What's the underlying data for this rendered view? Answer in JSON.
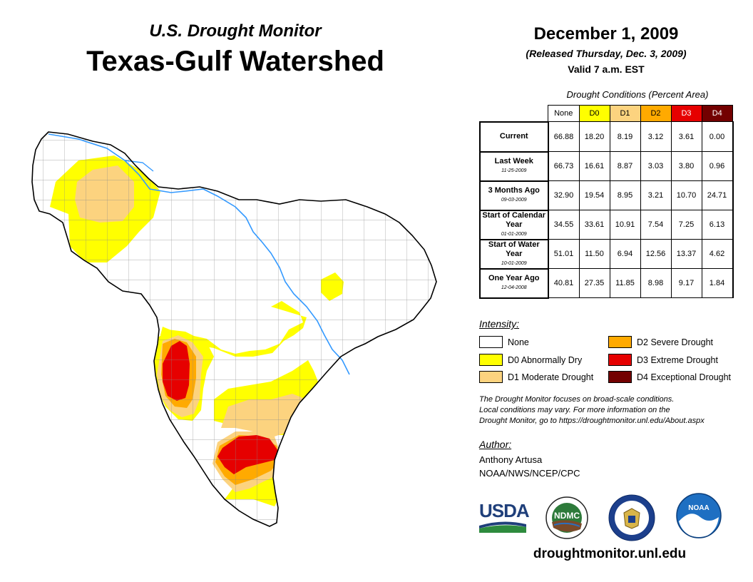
{
  "header": {
    "super_title": "U.S. Drought Monitor",
    "title": "Texas-Gulf Watershed",
    "date": "December 1, 2009",
    "released": "(Released Thursday, Dec. 3, 2009)",
    "valid": "Valid 7 a.m. EST"
  },
  "table": {
    "caption": "Drought Conditions (Percent Area)",
    "columns": [
      "None",
      "D0",
      "D1",
      "D2",
      "D3",
      "D4"
    ],
    "column_colors": [
      "#ffffff",
      "#ffff00",
      "#fcd37f",
      "#ffaa00",
      "#e60000",
      "#730000"
    ],
    "rows": [
      {
        "label": "Current",
        "date": "",
        "values": [
          "66.88",
          "18.20",
          "8.19",
          "3.12",
          "3.61",
          "0.00"
        ]
      },
      {
        "label": "Last Week",
        "date": "11-25-2009",
        "values": [
          "66.73",
          "16.61",
          "8.87",
          "3.03",
          "3.80",
          "0.96"
        ]
      },
      {
        "label": "3 Months Ago",
        "date": "09-03-2009",
        "values": [
          "32.90",
          "19.54",
          "8.95",
          "3.21",
          "10.70",
          "24.71"
        ]
      },
      {
        "label": "Start of Calendar Year",
        "date": "01-01-2009",
        "values": [
          "34.55",
          "33.61",
          "10.91",
          "7.54",
          "7.25",
          "6.13"
        ]
      },
      {
        "label": "Start of Water Year",
        "date": "10-01-2009",
        "values": [
          "51.01",
          "11.50",
          "6.94",
          "12.56",
          "13.37",
          "4.62"
        ]
      },
      {
        "label": "One Year Ago",
        "date": "12-04-2008",
        "values": [
          "40.81",
          "27.35",
          "11.85",
          "8.98",
          "9.17",
          "1.84"
        ]
      }
    ]
  },
  "legend": {
    "title": "Intensity:",
    "items": [
      {
        "label": "None",
        "color": "#ffffff"
      },
      {
        "label": "D0 Abnormally Dry",
        "color": "#ffff00"
      },
      {
        "label": "D1 Moderate Drought",
        "color": "#fcd37f"
      },
      {
        "label": "D2 Severe Drought",
        "color": "#ffaa00"
      },
      {
        "label": "D3 Extreme Drought",
        "color": "#e60000"
      },
      {
        "label": "D4 Exceptional Drought",
        "color": "#730000"
      }
    ]
  },
  "note": {
    "line1": "The Drought Monitor focuses on broad-scale conditions.",
    "line2": "Local conditions may vary. For more information on the",
    "line3": "Drought Monitor, go to https://droughtmonitor.unl.edu/About.aspx"
  },
  "author": {
    "heading": "Author:",
    "name": "Anthony Artusa",
    "org": "NOAA/NWS/NCEP/CPC"
  },
  "logos": {
    "usda": "USDA",
    "ndmc": "NDMC",
    "noaa": "NOAA"
  },
  "url": "droughtmonitor.unl.edu"
}
